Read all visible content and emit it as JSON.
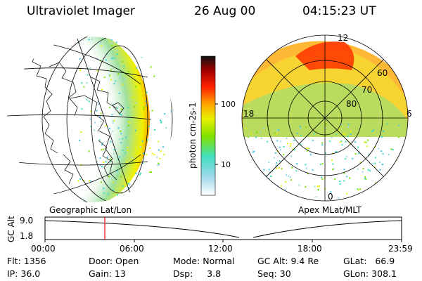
{
  "header": {
    "instrument": "Ultraviolet Imager",
    "date": "26 Aug 00",
    "time": "04:15:23 UT"
  },
  "geo_panel": {
    "caption": "Geographic Lat/Lon"
  },
  "polar_panel": {
    "caption": "Apex MLat/MLT",
    "mlt_labels": [
      "12",
      "18",
      "6",
      "0"
    ],
    "mlat_labels": [
      "60",
      "70",
      "80"
    ]
  },
  "colorbar": {
    "label": "photon cm-2s-1",
    "ticks": [
      "100",
      "10"
    ],
    "colors": [
      "#ffffff",
      "#40e0d0",
      "#7fff00",
      "#ffd700",
      "#ff8c00",
      "#ff0000",
      "#8b0000",
      "#000000"
    ]
  },
  "timeline": {
    "ylabel": "GC Alt",
    "y_ticks": [
      "9.0",
      "1.8"
    ],
    "x_ticks": [
      "00:00",
      "06:00",
      "12:00",
      "18:00",
      "23:59"
    ],
    "marker_time": "04:15",
    "marker_color": "#e00000"
  },
  "info": {
    "flt": "Flt: 1356",
    "ip": "IP: 36.0",
    "door": "Door: Open",
    "gain": "Gain: 13",
    "mode": "Mode: Normal",
    "dsp": "Dsp:     3.8",
    "gcalt": "GC Alt: 9.4 Re",
    "seq": "Seq: 30",
    "glat": "GLat:   66.9",
    "glon": "GLon: 308.1"
  }
}
